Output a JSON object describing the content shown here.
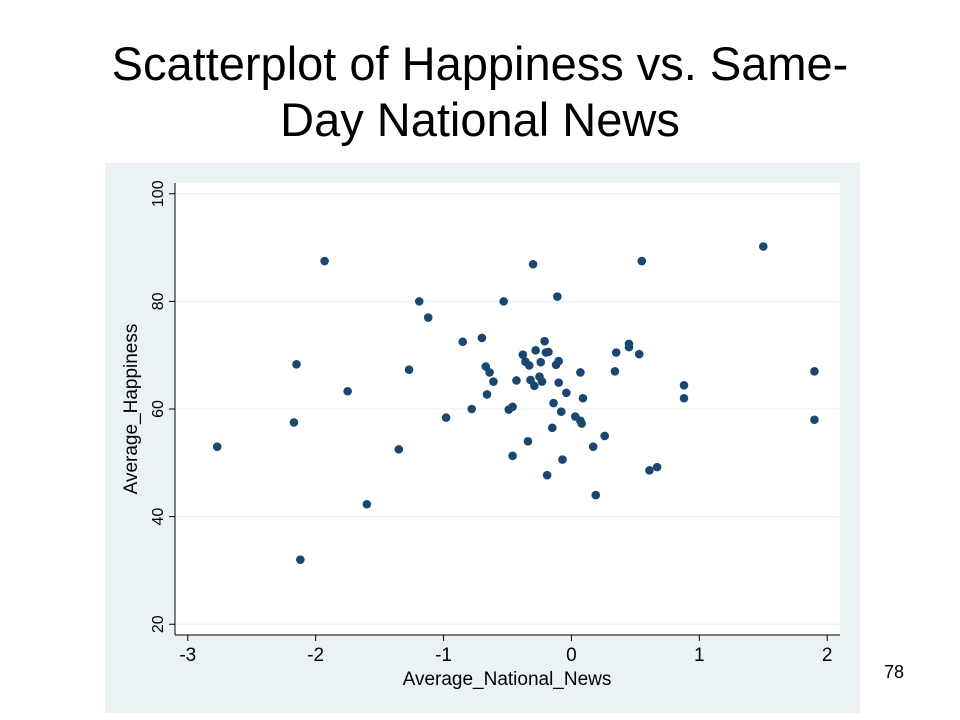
{
  "slide": {
    "title_line1": "Scatterplot of Happiness vs. Same-",
    "title_line2": "Day National News",
    "page_number": "78"
  },
  "colors": {
    "plot_region": "#eaf2f3",
    "plot_area": "#ffffff",
    "grid": "#eaf2f3",
    "marker": "#1a476f"
  },
  "chart_data": {
    "type": "scatter",
    "title": "",
    "xlabel": "Average_National_News",
    "ylabel": "Average_Happiness",
    "xlim": [
      -3.1,
      2.1
    ],
    "ylim": [
      18,
      102
    ],
    "xticks": [
      -3,
      -2,
      -1,
      0,
      1,
      2
    ],
    "xtick_labels": [
      "-3",
      "-2",
      "-1",
      "0",
      "1",
      "2"
    ],
    "yticks": [
      20,
      40,
      60,
      80,
      100
    ],
    "ytick_labels": [
      "20",
      "40",
      "60",
      "80",
      "100"
    ],
    "grid": "horizontal",
    "legend": "none",
    "points": [
      [
        -2.77,
        53
      ],
      [
        -2.15,
        68.3
      ],
      [
        -2.17,
        57.5
      ],
      [
        -2.12,
        32
      ],
      [
        -1.93,
        87.5
      ],
      [
        -1.75,
        63.3
      ],
      [
        -1.6,
        42.3
      ],
      [
        -1.35,
        52.5
      ],
      [
        -1.27,
        67.3
      ],
      [
        -1.19,
        80
      ],
      [
        -1.12,
        77
      ],
      [
        -0.98,
        58.4
      ],
      [
        -0.85,
        72.5
      ],
      [
        -0.78,
        60
      ],
      [
        -0.7,
        73.2
      ],
      [
        -0.67,
        67.9
      ],
      [
        -0.66,
        62.7
      ],
      [
        -0.64,
        66.8
      ],
      [
        -0.61,
        65.1
      ],
      [
        -0.53,
        80
      ],
      [
        -0.49,
        59.9
      ],
      [
        -0.46,
        60.4
      ],
      [
        -0.46,
        51.3
      ],
      [
        -0.43,
        65.3
      ],
      [
        -0.38,
        70.1
      ],
      [
        -0.36,
        68.8
      ],
      [
        -0.34,
        54
      ],
      [
        -0.33,
        68.1
      ],
      [
        -0.32,
        65.4
      ],
      [
        -0.3,
        86.9
      ],
      [
        -0.29,
        64.3
      ],
      [
        -0.28,
        70.9
      ],
      [
        -0.25,
        66
      ],
      [
        -0.24,
        68.7
      ],
      [
        -0.23,
        65.1
      ],
      [
        -0.21,
        72.6
      ],
      [
        -0.2,
        70.5
      ],
      [
        -0.18,
        70.6
      ],
      [
        -0.19,
        47.7
      ],
      [
        -0.15,
        56.5
      ],
      [
        -0.14,
        61.1
      ],
      [
        -0.12,
        68.2
      ],
      [
        -0.11,
        80.9
      ],
      [
        -0.1,
        68.9
      ],
      [
        -0.1,
        64.9
      ],
      [
        -0.08,
        59.5
      ],
      [
        -0.07,
        50.6
      ],
      [
        -0.04,
        63
      ],
      [
        0.03,
        58.6
      ],
      [
        0.07,
        57.8
      ],
      [
        0.08,
        57.3
      ],
      [
        0.07,
        66.8
      ],
      [
        0.09,
        62
      ],
      [
        0.17,
        53
      ],
      [
        0.19,
        44
      ],
      [
        0.26,
        55
      ],
      [
        0.34,
        67
      ],
      [
        0.35,
        70.5
      ],
      [
        0.45,
        71.5
      ],
      [
        0.45,
        72.1
      ],
      [
        0.53,
        70.2
      ],
      [
        0.55,
        87.5
      ],
      [
        0.61,
        48.6
      ],
      [
        0.67,
        49.2
      ],
      [
        0.88,
        64.4
      ],
      [
        0.88,
        62
      ],
      [
        1.5,
        90.2
      ],
      [
        1.9,
        67
      ],
      [
        1.9,
        58
      ]
    ]
  }
}
